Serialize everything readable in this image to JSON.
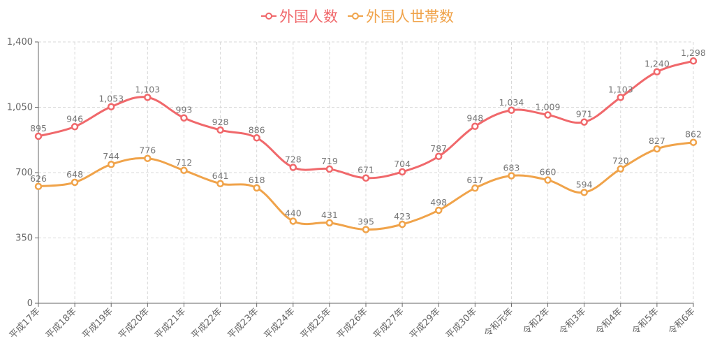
{
  "legend": {
    "items": [
      {
        "label": "外国人数",
        "color": "#F0686B"
      },
      {
        "label": "外国人世帯数",
        "color": "#F0A34A"
      }
    ]
  },
  "chart_data": {
    "type": "line",
    "categories": [
      "平成17年",
      "平成18年",
      "平成19年",
      "平成20年",
      "平成21年",
      "平成22年",
      "平成23年",
      "平成24年",
      "平成25年",
      "平成26年",
      "平成27年",
      "平成29年",
      "平成30年",
      "令和元年",
      "令和2年",
      "令和3年",
      "令和4年",
      "令和5年",
      "令和6年"
    ],
    "series": [
      {
        "name": "外国人数",
        "color": "#F0686B",
        "values": [
          895,
          946,
          1053,
          1103,
          993,
          928,
          886,
          728,
          719,
          671,
          704,
          787,
          948,
          1034,
          1009,
          971,
          1103,
          1240,
          1298
        ]
      },
      {
        "name": "外国人世帯数",
        "color": "#F0A34A",
        "values": [
          626,
          648,
          744,
          776,
          712,
          641,
          618,
          440,
          431,
          395,
          423,
          498,
          617,
          683,
          660,
          594,
          720,
          827,
          862
        ]
      }
    ],
    "y_ticks": [
      "0",
      "350",
      "700",
      "1,050",
      "1,400"
    ],
    "ylim": [
      0,
      1400
    ],
    "grid": true,
    "legend_position": "top-center",
    "smooth": true
  }
}
